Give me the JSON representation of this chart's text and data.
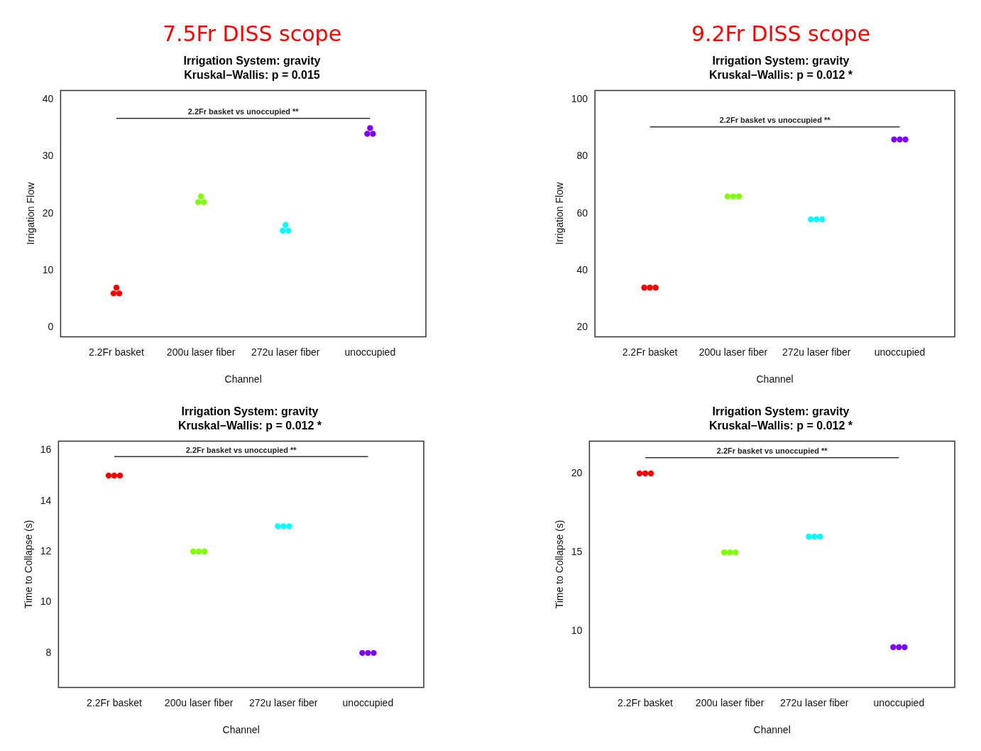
{
  "chart_data": [
    {
      "type": "scatter",
      "title": "7.5Fr DISS scope",
      "subtitle": "Irrigation System: gravity\nKruskal−Wallis: p = 0.015",
      "xlabel": "Channel",
      "ylabel": "Irrigation Flow",
      "categories": [
        "2.2Fr basket",
        "200u laser fiber",
        "272u laser fiber",
        "unoccupied"
      ],
      "series": [
        {
          "color": "#ff0000",
          "x": [
            "2.2Fr basket",
            "2.2Fr basket",
            "2.2Fr basket"
          ],
          "values": [
            7,
            6,
            6
          ]
        },
        {
          "color": "#80ff00",
          "x": [
            "200u laser fiber",
            "200u laser fiber",
            "200u laser fiber"
          ],
          "values": [
            23,
            22,
            22
          ]
        },
        {
          "color": "#00ffff",
          "x": [
            "272u laser fiber",
            "272u laser fiber",
            "272u laser fiber"
          ],
          "values": [
            18,
            17,
            17
          ]
        },
        {
          "color": "#8000ff",
          "x": [
            "unoccupied",
            "unoccupied",
            "unoccupied"
          ],
          "values": [
            35,
            34,
            34
          ]
        },
        {
          "type": "line",
          "color": "#333333",
          "x": [
            "2.2Fr basket",
            "unoccupied"
          ],
          "values": [
            36.7,
            36.7
          ],
          "marker": "none"
        }
      ],
      "ylim": [
        -1.6,
        41.6
      ],
      "yticks": [
        0,
        10,
        20,
        30,
        40
      ],
      "annotations": [
        {
          "text": "2.2Fr basket vs unoccupied **",
          "y": 36.7
        }
      ],
      "marker": "circle"
    },
    {
      "type": "scatter",
      "title": "9.2Fr DISS scope",
      "subtitle": "Irrigation System: gravity\nKruskal−Wallis: p = 0.012 *",
      "xlabel": "Channel",
      "ylabel": "Irrigation Flow",
      "categories": [
        "2.2Fr basket",
        "200u laser fiber",
        "272u laser fiber",
        "unoccupied"
      ],
      "series": [
        {
          "color": "#ff0000",
          "x": [
            "2.2Fr basket",
            "2.2Fr basket",
            "2.2Fr basket"
          ],
          "values": [
            34,
            34,
            34
          ]
        },
        {
          "color": "#80ff00",
          "x": [
            "200u laser fiber",
            "200u laser fiber",
            "200u laser fiber"
          ],
          "values": [
            66,
            66,
            66
          ]
        },
        {
          "color": "#00ffff",
          "x": [
            "272u laser fiber",
            "272u laser fiber",
            "272u laser fiber"
          ],
          "values": [
            58,
            58,
            58
          ]
        },
        {
          "color": "#8000ff",
          "x": [
            "unoccupied",
            "unoccupied",
            "unoccupied"
          ],
          "values": [
            86,
            86,
            86
          ]
        },
        {
          "type": "line",
          "color": "#333333",
          "x": [
            "2.2Fr basket",
            "unoccupied"
          ],
          "values": [
            90.4,
            90.4
          ],
          "marker": "none"
        }
      ],
      "ylim": [
        16.8,
        103.2
      ],
      "yticks": [
        20,
        40,
        60,
        80,
        100
      ],
      "annotations": [
        {
          "text": "2.2Fr basket vs unoccupied **",
          "y": 90.4
        }
      ],
      "marker": "circle"
    },
    {
      "type": "scatter",
      "subtitle": "Irrigation System: gravity\nKruskal−Wallis: p = 0.012 *",
      "xlabel": "Channel",
      "ylabel": "Time to Collapse (s)",
      "categories": [
        "2.2Fr basket",
        "200u laser fiber",
        "272u laser fiber",
        "unoccupied"
      ],
      "series": [
        {
          "color": "#ff0000",
          "x": [
            "2.2Fr basket",
            "2.2Fr basket",
            "2.2Fr basket"
          ],
          "values": [
            15,
            15,
            15
          ]
        },
        {
          "color": "#80ff00",
          "x": [
            "200u laser fiber",
            "200u laser fiber",
            "200u laser fiber"
          ],
          "values": [
            12,
            12,
            12
          ]
        },
        {
          "color": "#00ffff",
          "x": [
            "272u laser fiber",
            "272u laser fiber",
            "272u laser fiber"
          ],
          "values": [
            13,
            13,
            13
          ]
        },
        {
          "color": "#8000ff",
          "x": [
            "unoccupied",
            "unoccupied",
            "unoccupied"
          ],
          "values": [
            8,
            8,
            8
          ]
        },
        {
          "type": "line",
          "color": "#333333",
          "x": [
            "2.2Fr basket",
            "unoccupied"
          ],
          "values": [
            15.75,
            15.75
          ],
          "marker": "none"
        }
      ],
      "ylim": [
        6.64,
        16.36
      ],
      "yticks": [
        8,
        10,
        12,
        14,
        16
      ],
      "annotations": [
        {
          "text": "2.2Fr basket vs unoccupied **",
          "y": 15.75
        }
      ],
      "marker": "circle"
    },
    {
      "type": "scatter",
      "subtitle": "Irrigation System: gravity\nKruskal−Wallis: p = 0.012 *",
      "xlabel": "Channel",
      "ylabel": "Time to Collapse (s)",
      "categories": [
        "2.2Fr basket",
        "200u laser fiber",
        "272u laser fiber",
        "unoccupied"
      ],
      "series": [
        {
          "color": "#ff0000",
          "x": [
            "2.2Fr basket",
            "2.2Fr basket",
            "2.2Fr basket"
          ],
          "values": [
            20,
            20,
            20
          ]
        },
        {
          "color": "#80ff00",
          "x": [
            "200u laser fiber",
            "200u laser fiber",
            "200u laser fiber"
          ],
          "values": [
            15,
            15,
            15
          ]
        },
        {
          "color": "#00ffff",
          "x": [
            "272u laser fiber",
            "272u laser fiber",
            "272u laser fiber"
          ],
          "values": [
            16,
            16,
            16
          ]
        },
        {
          "color": "#8000ff",
          "x": [
            "unoccupied",
            "unoccupied",
            "unoccupied"
          ],
          "values": [
            9,
            9,
            9
          ]
        },
        {
          "type": "line",
          "color": "#333333",
          "x": [
            "2.2Fr basket",
            "unoccupied"
          ],
          "values": [
            21,
            21
          ],
          "marker": "none"
        }
      ],
      "ylim": [
        6.45,
        22.05
      ],
      "yticks": [
        10,
        15,
        20
      ],
      "annotations": [
        {
          "text": "2.2Fr basket vs unoccupied **",
          "y": 21
        }
      ],
      "marker": "circle"
    }
  ]
}
